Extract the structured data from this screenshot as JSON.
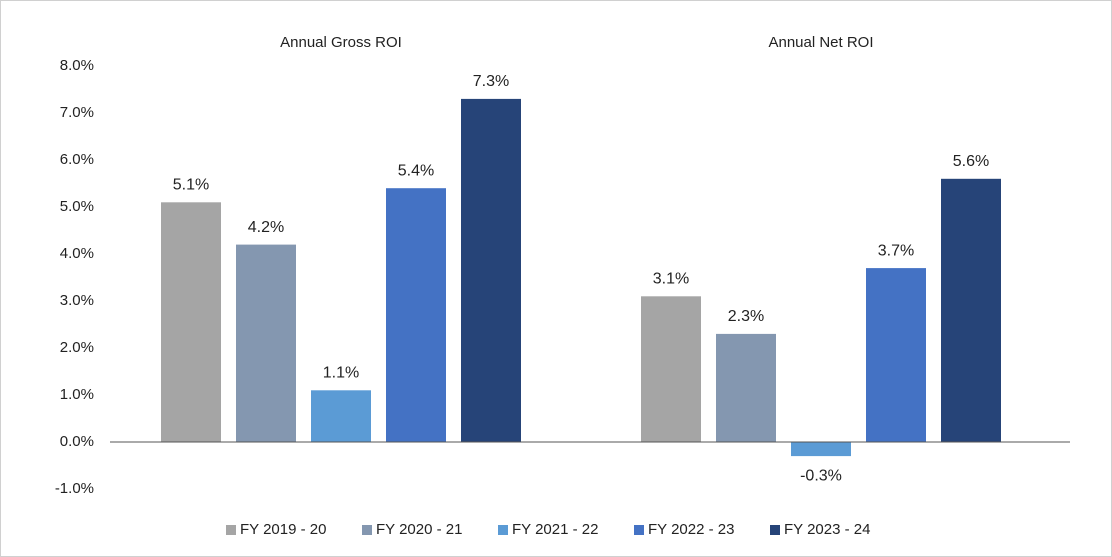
{
  "chart_data": {
    "type": "bar",
    "categories": [
      "Annual Gross ROI",
      "Annual Net ROI"
    ],
    "series": [
      {
        "name": "FY 2019 - 20",
        "color": "#a5a5a5",
        "values": [
          5.1,
          3.1
        ],
        "value_labels": [
          "5.1%",
          "3.1%"
        ]
      },
      {
        "name": "FY 2020 - 21",
        "color": "#8497b0",
        "values": [
          4.2,
          2.3
        ],
        "value_labels": [
          "4.2%",
          "2.3%"
        ]
      },
      {
        "name": "FY 2021 - 22",
        "color": "#5b9bd5",
        "values": [
          1.1,
          -0.3
        ],
        "value_labels": [
          "1.1%",
          "-0.3%"
        ]
      },
      {
        "name": "FY 2022 - 23",
        "color": "#4472c4",
        "values": [
          5.4,
          3.7
        ],
        "value_labels": [
          "5.4%",
          "3.7%"
        ]
      },
      {
        "name": "FY 2023 - 24",
        "color": "#264478",
        "values": [
          7.3,
          5.6
        ],
        "value_labels": [
          "7.3%",
          "5.6%"
        ]
      }
    ],
    "ylim": [
      -1,
      8
    ],
    "yticks": [
      {
        "value": -1,
        "label": "-1.0%"
      },
      {
        "value": 0,
        "label": "0.0%"
      },
      {
        "value": 1,
        "label": "1.0%"
      },
      {
        "value": 2,
        "label": "2.0%"
      },
      {
        "value": 3,
        "label": "3.0%"
      },
      {
        "value": 4,
        "label": "4.0%"
      },
      {
        "value": 5,
        "label": "5.0%"
      },
      {
        "value": 6,
        "label": "6.0%"
      },
      {
        "value": 7,
        "label": "7.0%"
      },
      {
        "value": 8,
        "label": "8.0%"
      }
    ],
    "grid": false,
    "legend": "bottom"
  }
}
